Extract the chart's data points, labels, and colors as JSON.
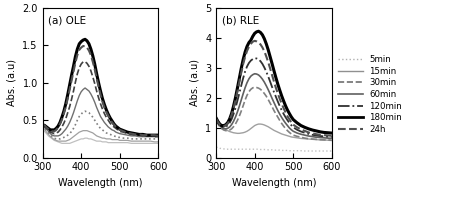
{
  "title_a": "(a) OLE",
  "title_b": "(b) RLE",
  "xlabel": "Wavelength (nm)",
  "ylabel": "Abs. (a.u)",
  "xlim": [
    300,
    600
  ],
  "ylim_a": [
    0,
    2
  ],
  "ylim_b": [
    0,
    5
  ],
  "yticks_a": [
    0,
    0.5,
    1.0,
    1.5,
    2.0
  ],
  "yticks_b": [
    0,
    1,
    2,
    3,
    4,
    5
  ],
  "legend_labels": [
    "5min",
    "15min",
    "30min",
    "60min",
    "120min",
    "180min",
    "24h"
  ],
  "legend_styles": [
    {
      "color": "#b0b0b0",
      "ls": "dotted",
      "lw": 1.0
    },
    {
      "color": "#909090",
      "ls": "solid",
      "lw": 1.0
    },
    {
      "color": "#707070",
      "ls": "dashed",
      "lw": 1.2
    },
    {
      "color": "#606060",
      "ls": "solid",
      "lw": 1.2
    },
    {
      "color": "#303030",
      "ls": "dashdot",
      "lw": 1.3
    },
    {
      "color": "#000000",
      "ls": "solid",
      "lw": 2.0
    },
    {
      "color": "#505050",
      "ls": "dashed",
      "lw": 1.5
    }
  ],
  "ole_styles": [
    {
      "color": "#c0c0c0",
      "ls": "solid",
      "lw": 0.9
    },
    {
      "color": "#a0a0a0",
      "ls": "solid",
      "lw": 0.9
    },
    {
      "color": "#808080",
      "ls": "dotted",
      "lw": 1.2
    },
    {
      "color": "#707070",
      "ls": "solid",
      "lw": 1.0
    },
    {
      "color": "#404040",
      "ls": "dashed",
      "lw": 1.2
    },
    {
      "color": "#000000",
      "ls": "solid",
      "lw": 2.2
    },
    {
      "color": "#505050",
      "ls": "dashed",
      "lw": 1.5
    }
  ],
  "rle_styles": [
    {
      "color": "#c0c0c0",
      "ls": "dotted",
      "lw": 1.0
    },
    {
      "color": "#a0a0a0",
      "ls": "solid",
      "lw": 1.0
    },
    {
      "color": "#808080",
      "ls": "dashed",
      "lw": 1.2
    },
    {
      "color": "#606060",
      "ls": "solid",
      "lw": 1.2
    },
    {
      "color": "#303030",
      "ls": "dashdot",
      "lw": 1.3
    },
    {
      "color": "#000000",
      "ls": "solid",
      "lw": 2.2
    },
    {
      "color": "#505050",
      "ls": "dashed",
      "lw": 1.5
    }
  ],
  "wavelengths": [
    300,
    305,
    310,
    315,
    320,
    325,
    330,
    335,
    340,
    345,
    350,
    355,
    360,
    365,
    370,
    375,
    380,
    385,
    390,
    395,
    400,
    405,
    410,
    415,
    420,
    425,
    430,
    435,
    440,
    445,
    450,
    455,
    460,
    465,
    470,
    475,
    480,
    485,
    490,
    495,
    500,
    510,
    520,
    530,
    540,
    550,
    560,
    570,
    580,
    590,
    600
  ],
  "ole_data": [
    [
      0.38,
      0.35,
      0.32,
      0.29,
      0.27,
      0.25,
      0.23,
      0.22,
      0.21,
      0.2,
      0.19,
      0.19,
      0.19,
      0.19,
      0.19,
      0.2,
      0.21,
      0.22,
      0.23,
      0.24,
      0.25,
      0.25,
      0.26,
      0.26,
      0.25,
      0.25,
      0.24,
      0.23,
      0.22,
      0.22,
      0.22,
      0.21,
      0.21,
      0.21,
      0.2,
      0.2,
      0.2,
      0.2,
      0.2,
      0.2,
      0.2,
      0.2,
      0.2,
      0.19,
      0.19,
      0.19,
      0.19,
      0.19,
      0.19,
      0.19,
      0.19
    ],
    [
      0.42,
      0.38,
      0.34,
      0.31,
      0.28,
      0.26,
      0.24,
      0.23,
      0.22,
      0.22,
      0.22,
      0.22,
      0.22,
      0.23,
      0.24,
      0.26,
      0.28,
      0.3,
      0.32,
      0.34,
      0.35,
      0.36,
      0.36,
      0.36,
      0.35,
      0.34,
      0.33,
      0.31,
      0.29,
      0.28,
      0.27,
      0.26,
      0.26,
      0.25,
      0.25,
      0.25,
      0.24,
      0.24,
      0.24,
      0.24,
      0.23,
      0.23,
      0.23,
      0.22,
      0.22,
      0.22,
      0.22,
      0.22,
      0.22,
      0.21,
      0.21
    ],
    [
      0.43,
      0.4,
      0.36,
      0.33,
      0.3,
      0.28,
      0.26,
      0.25,
      0.25,
      0.25,
      0.26,
      0.27,
      0.28,
      0.3,
      0.32,
      0.35,
      0.39,
      0.44,
      0.5,
      0.55,
      0.58,
      0.61,
      0.62,
      0.61,
      0.6,
      0.57,
      0.54,
      0.5,
      0.46,
      0.42,
      0.39,
      0.37,
      0.35,
      0.33,
      0.32,
      0.31,
      0.3,
      0.29,
      0.28,
      0.27,
      0.27,
      0.26,
      0.26,
      0.25,
      0.25,
      0.25,
      0.25,
      0.25,
      0.25,
      0.25,
      0.25
    ],
    [
      0.44,
      0.41,
      0.38,
      0.35,
      0.32,
      0.3,
      0.29,
      0.29,
      0.29,
      0.3,
      0.32,
      0.35,
      0.38,
      0.42,
      0.47,
      0.53,
      0.6,
      0.68,
      0.76,
      0.83,
      0.88,
      0.91,
      0.93,
      0.91,
      0.89,
      0.85,
      0.8,
      0.74,
      0.67,
      0.61,
      0.55,
      0.51,
      0.47,
      0.44,
      0.41,
      0.39,
      0.37,
      0.36,
      0.34,
      0.33,
      0.32,
      0.31,
      0.3,
      0.29,
      0.29,
      0.28,
      0.28,
      0.28,
      0.28,
      0.28,
      0.28
    ],
    [
      0.44,
      0.42,
      0.39,
      0.36,
      0.34,
      0.33,
      0.32,
      0.33,
      0.34,
      0.37,
      0.41,
      0.46,
      0.52,
      0.6,
      0.68,
      0.78,
      0.89,
      1.01,
      1.12,
      1.2,
      1.25,
      1.28,
      1.28,
      1.26,
      1.22,
      1.16,
      1.08,
      0.99,
      0.89,
      0.8,
      0.72,
      0.65,
      0.59,
      0.54,
      0.5,
      0.46,
      0.43,
      0.41,
      0.39,
      0.37,
      0.35,
      0.34,
      0.32,
      0.31,
      0.3,
      0.3,
      0.29,
      0.29,
      0.29,
      0.28,
      0.28
    ],
    [
      0.44,
      0.43,
      0.41,
      0.39,
      0.37,
      0.37,
      0.37,
      0.39,
      0.42,
      0.47,
      0.54,
      0.62,
      0.72,
      0.84,
      0.97,
      1.1,
      1.22,
      1.35,
      1.45,
      1.52,
      1.55,
      1.57,
      1.58,
      1.56,
      1.52,
      1.45,
      1.36,
      1.25,
      1.12,
      1.0,
      0.89,
      0.79,
      0.71,
      0.64,
      0.58,
      0.53,
      0.49,
      0.45,
      0.42,
      0.4,
      0.38,
      0.36,
      0.34,
      0.33,
      0.32,
      0.31,
      0.31,
      0.3,
      0.3,
      0.3,
      0.3
    ],
    [
      0.44,
      0.43,
      0.4,
      0.38,
      0.36,
      0.35,
      0.35,
      0.37,
      0.4,
      0.45,
      0.51,
      0.59,
      0.68,
      0.79,
      0.91,
      1.03,
      1.15,
      1.27,
      1.37,
      1.44,
      1.47,
      1.49,
      1.49,
      1.47,
      1.43,
      1.37,
      1.28,
      1.18,
      1.06,
      0.95,
      0.84,
      0.75,
      0.67,
      0.61,
      0.56,
      0.51,
      0.47,
      0.44,
      0.41,
      0.39,
      0.37,
      0.35,
      0.33,
      0.32,
      0.31,
      0.31,
      0.3,
      0.3,
      0.3,
      0.3,
      0.29
    ]
  ],
  "rle_data": [
    [
      0.35,
      0.33,
      0.31,
      0.3,
      0.29,
      0.28,
      0.28,
      0.28,
      0.28,
      0.28,
      0.28,
      0.28,
      0.28,
      0.28,
      0.28,
      0.28,
      0.28,
      0.28,
      0.28,
      0.28,
      0.28,
      0.28,
      0.28,
      0.27,
      0.27,
      0.27,
      0.27,
      0.26,
      0.26,
      0.26,
      0.25,
      0.25,
      0.25,
      0.25,
      0.24,
      0.24,
      0.24,
      0.24,
      0.23,
      0.23,
      0.23,
      0.23,
      0.23,
      0.22,
      0.22,
      0.22,
      0.22,
      0.22,
      0.22,
      0.22,
      0.22
    ],
    [
      1.28,
      1.2,
      1.12,
      1.05,
      0.99,
      0.94,
      0.9,
      0.87,
      0.85,
      0.83,
      0.82,
      0.81,
      0.81,
      0.82,
      0.83,
      0.85,
      0.88,
      0.92,
      0.97,
      1.02,
      1.07,
      1.1,
      1.12,
      1.12,
      1.11,
      1.09,
      1.06,
      1.03,
      0.99,
      0.95,
      0.91,
      0.88,
      0.85,
      0.82,
      0.79,
      0.77,
      0.75,
      0.73,
      0.71,
      0.69,
      0.68,
      0.66,
      0.64,
      0.63,
      0.62,
      0.61,
      0.6,
      0.59,
      0.59,
      0.58,
      0.57
    ],
    [
      1.22,
      1.12,
      1.02,
      0.96,
      0.92,
      0.9,
      0.9,
      0.92,
      0.96,
      1.03,
      1.12,
      1.24,
      1.38,
      1.55,
      1.73,
      1.92,
      2.08,
      2.2,
      2.28,
      2.33,
      2.35,
      2.34,
      2.32,
      2.28,
      2.22,
      2.14,
      2.05,
      1.94,
      1.82,
      1.7,
      1.57,
      1.46,
      1.35,
      1.24,
      1.14,
      1.05,
      0.97,
      0.9,
      0.84,
      0.79,
      0.75,
      0.71,
      0.68,
      0.65,
      0.63,
      0.62,
      0.61,
      0.6,
      0.59,
      0.59,
      0.58
    ],
    [
      1.25,
      1.15,
      1.06,
      1.0,
      0.97,
      0.96,
      0.98,
      1.02,
      1.1,
      1.21,
      1.35,
      1.52,
      1.71,
      1.92,
      2.13,
      2.33,
      2.5,
      2.63,
      2.72,
      2.77,
      2.8,
      2.79,
      2.76,
      2.7,
      2.62,
      2.52,
      2.4,
      2.27,
      2.13,
      1.98,
      1.84,
      1.7,
      1.57,
      1.45,
      1.34,
      1.24,
      1.15,
      1.07,
      0.99,
      0.93,
      0.88,
      0.82,
      0.78,
      0.75,
      0.72,
      0.7,
      0.68,
      0.67,
      0.66,
      0.65,
      0.64
    ],
    [
      1.3,
      1.18,
      1.08,
      1.03,
      1.02,
      1.03,
      1.08,
      1.16,
      1.28,
      1.45,
      1.65,
      1.89,
      2.14,
      2.4,
      2.65,
      2.87,
      3.04,
      3.16,
      3.24,
      3.29,
      3.32,
      3.31,
      3.28,
      3.22,
      3.13,
      3.01,
      2.87,
      2.71,
      2.54,
      2.36,
      2.19,
      2.03,
      1.87,
      1.72,
      1.58,
      1.46,
      1.35,
      1.25,
      1.16,
      1.08,
      1.01,
      0.93,
      0.87,
      0.83,
      0.79,
      0.76,
      0.74,
      0.72,
      0.71,
      0.7,
      0.69
    ],
    [
      1.32,
      1.2,
      1.11,
      1.07,
      1.07,
      1.1,
      1.17,
      1.29,
      1.47,
      1.71,
      1.99,
      2.31,
      2.64,
      2.97,
      3.27,
      3.52,
      3.71,
      3.84,
      3.92,
      4.05,
      4.15,
      4.2,
      4.22,
      4.18,
      4.1,
      3.97,
      3.8,
      3.6,
      3.37,
      3.14,
      2.9,
      2.67,
      2.45,
      2.25,
      2.06,
      1.89,
      1.73,
      1.59,
      1.47,
      1.36,
      1.27,
      1.16,
      1.07,
      1.01,
      0.96,
      0.92,
      0.89,
      0.86,
      0.84,
      0.83,
      0.82
    ],
    [
      1.3,
      1.18,
      1.09,
      1.05,
      1.05,
      1.08,
      1.14,
      1.25,
      1.42,
      1.64,
      1.9,
      2.2,
      2.52,
      2.83,
      3.12,
      3.36,
      3.56,
      3.7,
      3.8,
      3.87,
      3.9,
      3.88,
      3.84,
      3.78,
      3.68,
      3.55,
      3.38,
      3.19,
      2.98,
      2.76,
      2.54,
      2.33,
      2.14,
      1.96,
      1.8,
      1.65,
      1.51,
      1.38,
      1.28,
      1.18,
      1.1,
      1.01,
      0.94,
      0.89,
      0.84,
      0.81,
      0.78,
      0.76,
      0.75,
      0.74,
      0.73
    ]
  ]
}
